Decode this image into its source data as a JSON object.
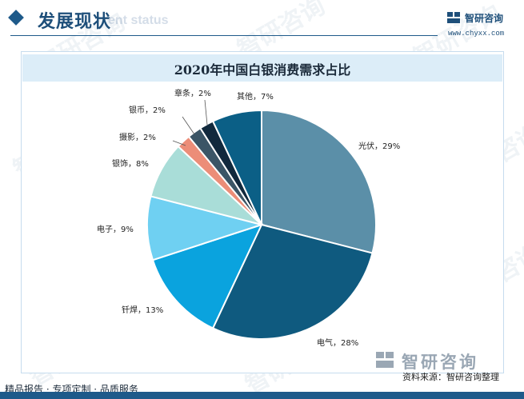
{
  "header": {
    "title": "发展现状",
    "ghost_text": "ent status"
  },
  "logo": {
    "name": "智研咨询",
    "url": "www.chyxx.com"
  },
  "chart_data": {
    "type": "pie",
    "title": "2020年中国白银消费需求占比",
    "slices": [
      {
        "label": "光伏",
        "value": 29,
        "display": "光伏，29%",
        "color": "#5b8fa8"
      },
      {
        "label": "电气",
        "value": 28,
        "display": "电气，28%",
        "color": "#0f5a7f"
      },
      {
        "label": "钎焊",
        "value": 13,
        "display": "钎焊，13%",
        "color": "#0aa3de"
      },
      {
        "label": "电子",
        "value": 9,
        "display": "电子，9%",
        "color": "#6fd0f2"
      },
      {
        "label": "银饰",
        "value": 8,
        "display": "银饰，8%",
        "color": "#a9ddd8"
      },
      {
        "label": "摄影",
        "value": 2,
        "display": "摄影，2%",
        "color": "#ec8d78"
      },
      {
        "label": "银币",
        "value": 2,
        "display": "银币，2%",
        "color": "#3b5566"
      },
      {
        "label": "章条",
        "value": 2,
        "display": "章条，2%",
        "color": "#11293d"
      },
      {
        "label": "其他",
        "value": 7,
        "display": "其他，7%",
        "color": "#0b5f86"
      }
    ]
  },
  "watermark_text": "智研咨询",
  "footer": {
    "left_text": "精品报告 · 专项定制 · 品质服务",
    "brand_name": "智研咨询",
    "source": "资料来源：智研咨询整理"
  }
}
